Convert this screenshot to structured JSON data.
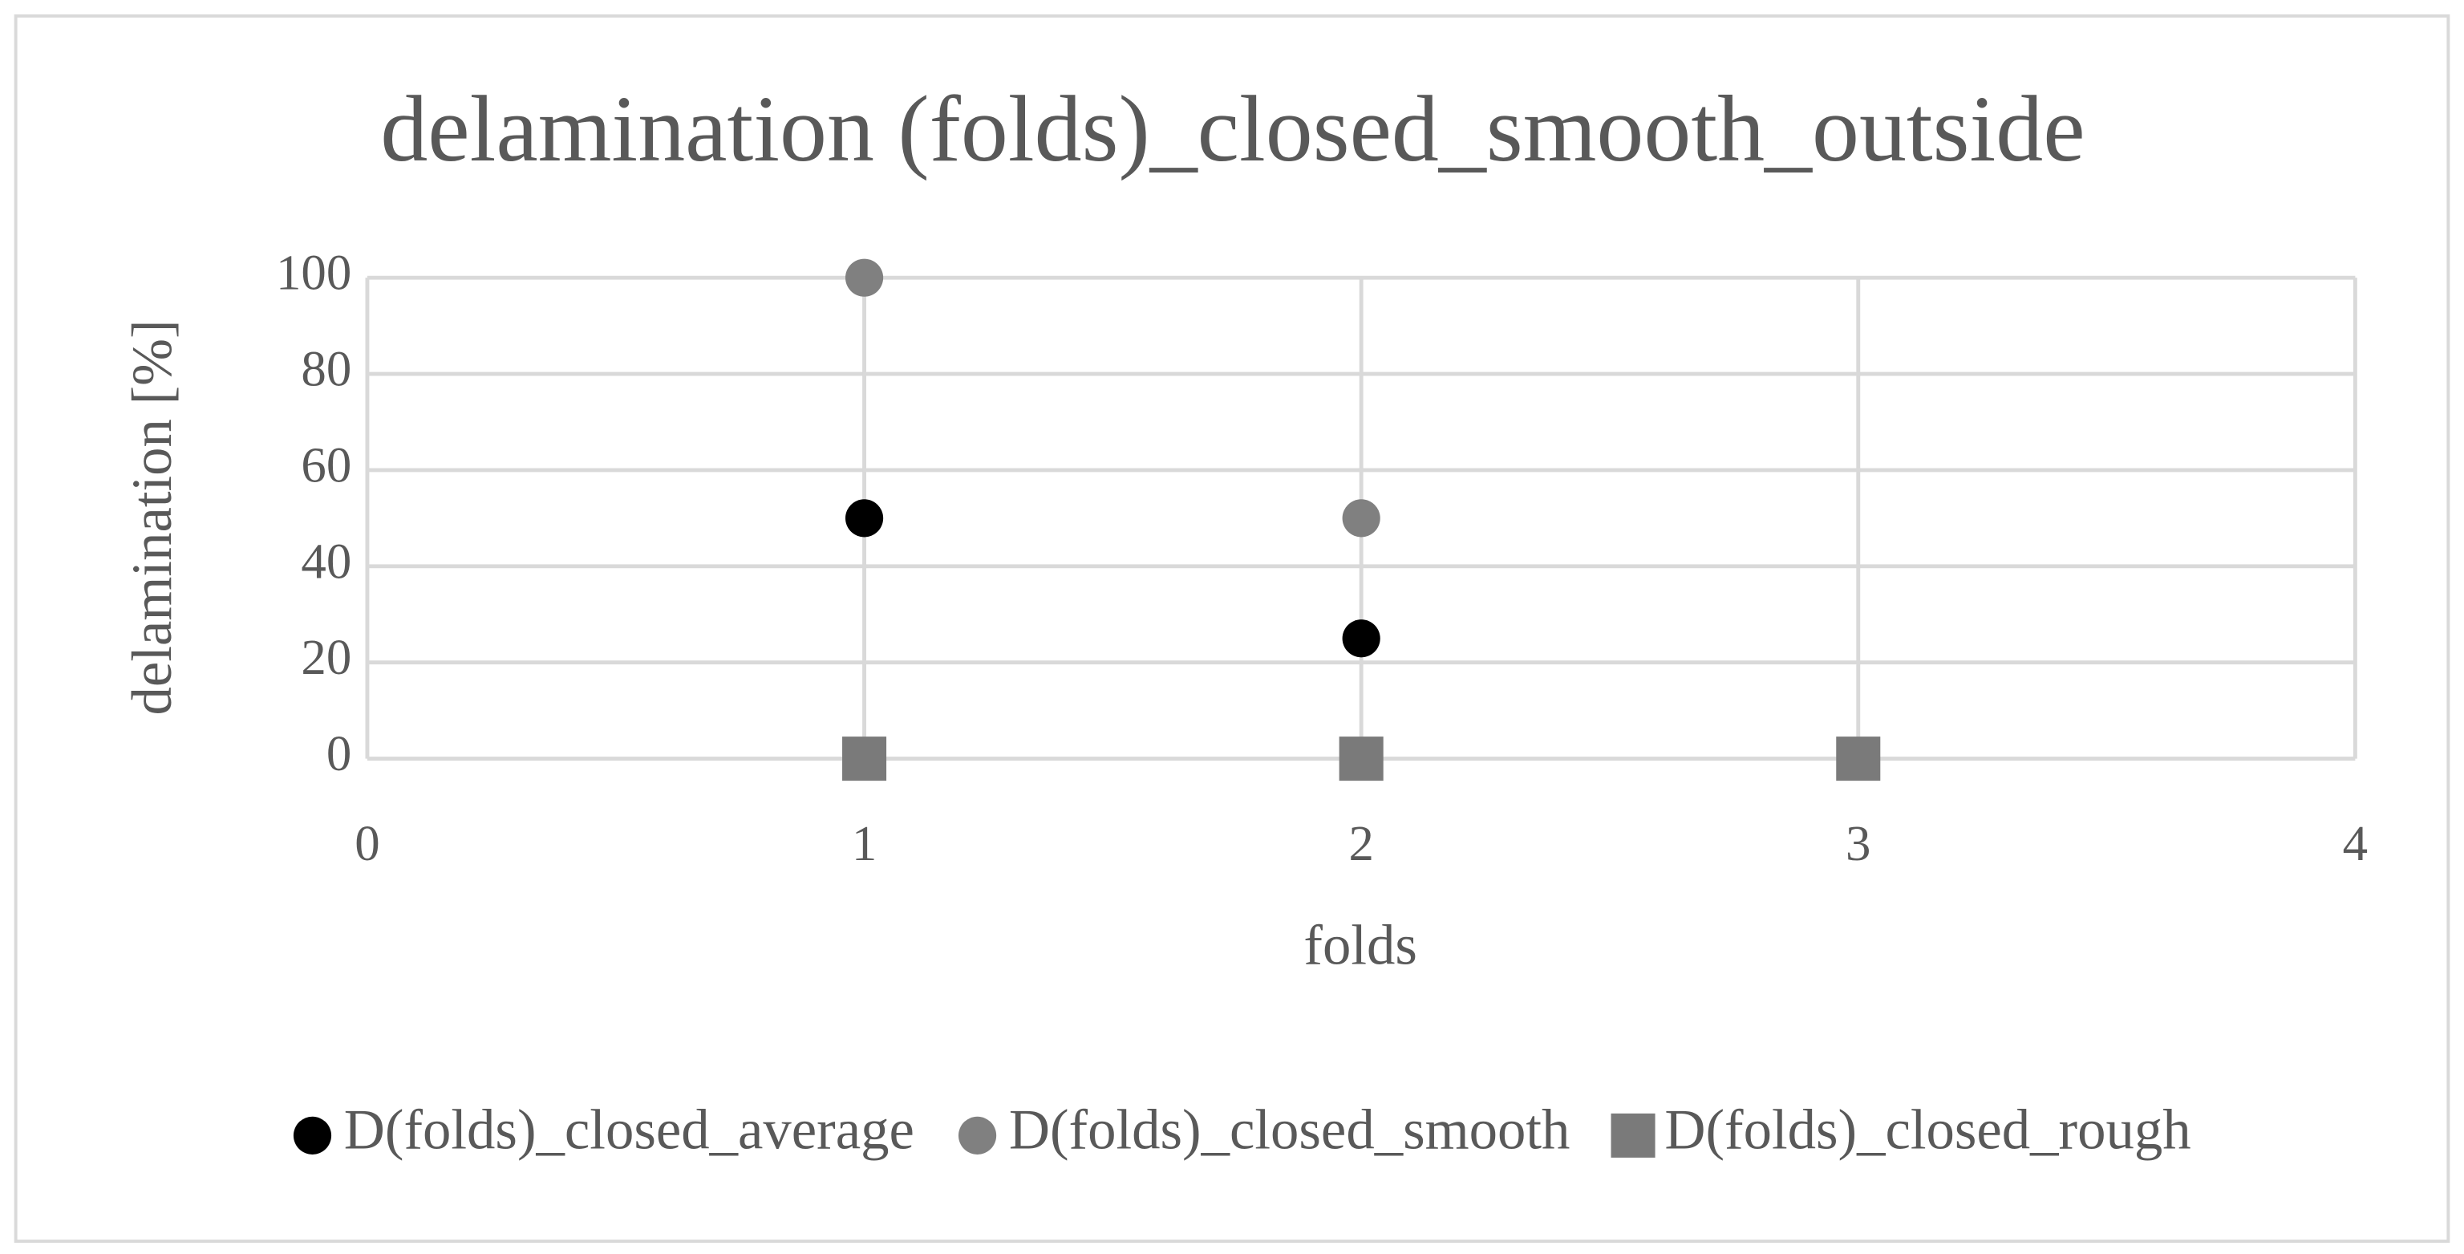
{
  "chart_data": {
    "type": "scatter",
    "title": "delamination (folds)_closed_smooth_outside",
    "x_label": "folds",
    "y_label": "delamination [%]",
    "xlim": [
      0,
      4
    ],
    "xticks": [
      0,
      1,
      2,
      3,
      4
    ],
    "ylim": [
      0,
      100
    ],
    "yticks": [
      0,
      20,
      40,
      60,
      80,
      100
    ],
    "grid": true,
    "legend": "bottom",
    "series": [
      {
        "name": "D(folds)_closed_average",
        "color": "#000000",
        "marker": "circle",
        "x": [
          1,
          2,
          3
        ],
        "values": [
          50,
          25,
          0
        ]
      },
      {
        "name": "D(folds)_closed_smooth",
        "color": "#808080",
        "marker": "circle",
        "x": [
          1,
          2,
          3
        ],
        "values": [
          100,
          50,
          0
        ]
      },
      {
        "name": "D(folds)_closed_rough",
        "color": "#7a7a7a",
        "marker": "square",
        "x": [
          1,
          2,
          3
        ],
        "values": [
          0,
          0,
          0
        ]
      }
    ]
  }
}
